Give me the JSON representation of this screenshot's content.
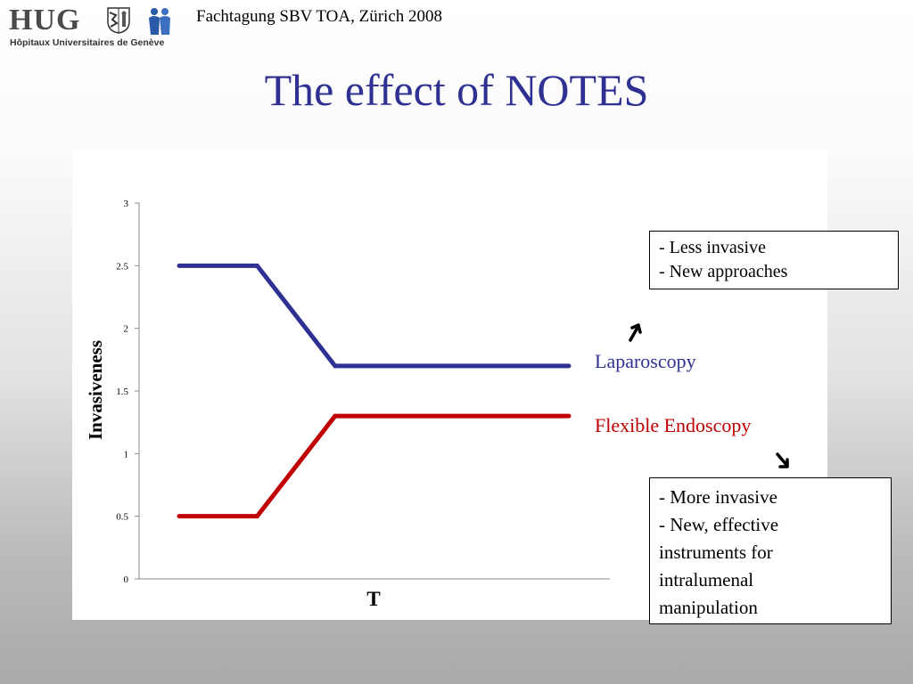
{
  "header": {
    "logo_text": "HUG",
    "logo_subtitle": "Hôpitaux Universitaires de Genève",
    "event": "Fachtagung SBV TOA, Zürich 2008"
  },
  "slide": {
    "title": "The effect of NOTES"
  },
  "chart_data": {
    "type": "line",
    "title": "",
    "xlabel": "T",
    "ylabel": "Invasiveness",
    "ylim": [
      0,
      3
    ],
    "yticks": [
      "0",
      "0.5",
      "1",
      "1.5",
      "2",
      "2.5",
      "3"
    ],
    "x": [
      1,
      2,
      3,
      4,
      5,
      6
    ],
    "series": [
      {
        "name": "Laparoscopy",
        "color": "#2e3192",
        "values": [
          2.5,
          2.5,
          1.7,
          1.7,
          1.7,
          1.7
        ]
      },
      {
        "name": "Flexible Endoscopy",
        "color": "#c00000",
        "values": [
          0.5,
          0.5,
          1.3,
          1.3,
          1.3,
          1.3
        ]
      }
    ],
    "grid": false,
    "legend": "right (inline labels)"
  },
  "notes": {
    "top": [
      "- Less invasive",
      "- New approaches"
    ],
    "bottom": [
      "- More invasive",
      "- New, effective",
      "instruments for",
      "intralumenal",
      "manipulation"
    ]
  },
  "icons": {
    "arrow_up": "arrow-up-icon",
    "arrow_down": "arrow-down-icon"
  }
}
